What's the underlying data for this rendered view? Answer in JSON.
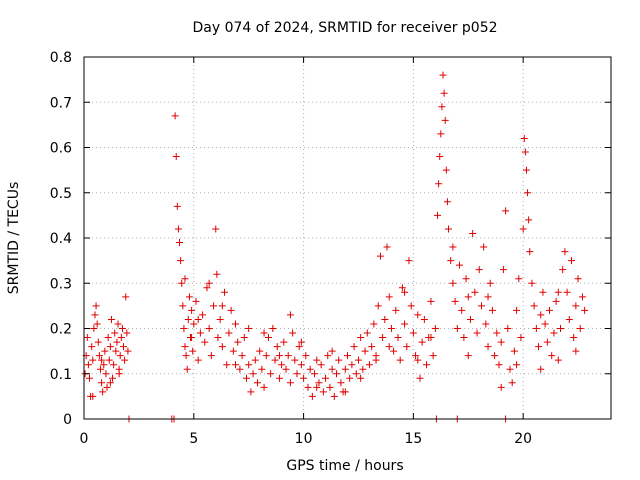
{
  "chart_data": {
    "type": "scatter",
    "title": "Day 074 of 2024, SRMTID for receiver p052",
    "xlabel": "GPS time / hours",
    "ylabel": "SRMTID / TECUs",
    "xlim": [
      0,
      24
    ],
    "ylim": [
      0,
      0.8
    ],
    "xticks": [
      0,
      5,
      10,
      15,
      20
    ],
    "xtick_labels": [
      "0",
      "5",
      "10",
      "15",
      "20"
    ],
    "yticks": [
      0,
      0.1,
      0.2,
      0.3,
      0.4,
      0.5,
      0.6,
      0.7,
      0.8
    ],
    "ytick_labels": [
      "0",
      "0.1",
      "0.2",
      "0.3",
      "0.4",
      "0.5",
      "0.6",
      "0.7",
      "0.8"
    ],
    "grid": true,
    "marker": "+",
    "color": "#e00000",
    "series": [
      {
        "name": "p052",
        "points": [
          [
            0.05,
            0.1
          ],
          [
            0.1,
            0.14
          ],
          [
            0.15,
            0.18
          ],
          [
            0.2,
            0.12
          ],
          [
            0.25,
            0.09
          ],
          [
            0.3,
            0.05
          ],
          [
            0.35,
            0.16
          ],
          [
            0.4,
            0.13
          ],
          [
            0.45,
            0.2
          ],
          [
            0.5,
            0.23
          ],
          [
            0.55,
            0.25
          ],
          [
            0.6,
            0.21
          ],
          [
            0.65,
            0.17
          ],
          [
            0.7,
            0.14
          ],
          [
            0.75,
            0.11
          ],
          [
            0.8,
            0.08
          ],
          [
            0.85,
            0.06
          ],
          [
            0.9,
            0.12
          ],
          [
            0.95,
            0.15
          ],
          [
            1.0,
            0.1
          ],
          [
            1.05,
            0.07
          ],
          [
            1.1,
            0.18
          ],
          [
            1.15,
            0.13
          ],
          [
            1.2,
            0.16
          ],
          [
            1.25,
            0.22
          ],
          [
            1.3,
            0.09
          ],
          [
            1.35,
            0.12
          ],
          [
            1.4,
            0.19
          ],
          [
            1.45,
            0.15
          ],
          [
            1.5,
            0.17
          ],
          [
            1.55,
            0.21
          ],
          [
            1.6,
            0.11
          ],
          [
            1.65,
            0.14
          ],
          [
            1.7,
            0.18
          ],
          [
            1.75,
            0.2
          ],
          [
            1.8,
            0.16
          ],
          [
            1.85,
            0.13
          ],
          [
            1.9,
            0.27
          ],
          [
            1.95,
            0.19
          ],
          [
            2.0,
            0.15
          ],
          [
            2.05,
            0.0
          ],
          [
            0.4,
            0.05
          ],
          [
            0.8,
            0.13
          ],
          [
            1.2,
            0.08
          ],
          [
            1.6,
            0.1
          ],
          [
            4.0,
            0.0
          ],
          [
            4.1,
            0.0
          ],
          [
            4.15,
            0.67
          ],
          [
            4.2,
            0.58
          ],
          [
            4.25,
            0.47
          ],
          [
            4.3,
            0.42
          ],
          [
            4.35,
            0.39
          ],
          [
            4.4,
            0.35
          ],
          [
            4.45,
            0.3
          ],
          [
            4.5,
            0.25
          ],
          [
            4.55,
            0.2
          ],
          [
            4.6,
            0.16
          ],
          [
            4.65,
            0.14
          ],
          [
            4.7,
            0.11
          ],
          [
            4.75,
            0.22
          ],
          [
            4.8,
            0.27
          ],
          [
            4.85,
            0.18
          ],
          [
            4.9,
            0.24
          ],
          [
            4.95,
            0.15
          ],
          [
            5.0,
            0.21
          ],
          [
            5.1,
            0.26
          ],
          [
            5.2,
            0.13
          ],
          [
            5.3,
            0.19
          ],
          [
            5.4,
            0.23
          ],
          [
            5.5,
            0.17
          ],
          [
            5.6,
            0.29
          ],
          [
            5.7,
            0.2
          ],
          [
            5.8,
            0.14
          ],
          [
            5.9,
            0.25
          ],
          [
            6.0,
            0.42
          ],
          [
            6.05,
            0.32
          ],
          [
            6.1,
            0.18
          ],
          [
            6.2,
            0.22
          ],
          [
            6.3,
            0.16
          ],
          [
            6.4,
            0.28
          ],
          [
            6.5,
            0.12
          ],
          [
            6.6,
            0.19
          ],
          [
            6.7,
            0.24
          ],
          [
            6.8,
            0.15
          ],
          [
            6.9,
            0.21
          ],
          [
            7.0,
            0.17
          ],
          [
            7.1,
            0.11
          ],
          [
            7.2,
            0.14
          ],
          [
            7.3,
            0.18
          ],
          [
            7.4,
            0.09
          ],
          [
            7.5,
            0.12
          ],
          [
            7.6,
            0.06
          ],
          [
            7.7,
            0.1
          ],
          [
            7.8,
            0.13
          ],
          [
            7.9,
            0.08
          ],
          [
            8.0,
            0.15
          ],
          [
            8.1,
            0.11
          ],
          [
            8.2,
            0.07
          ],
          [
            8.3,
            0.14
          ],
          [
            8.4,
            0.18
          ],
          [
            8.5,
            0.1
          ],
          [
            8.6,
            0.2
          ],
          [
            8.7,
            0.13
          ],
          [
            8.8,
            0.16
          ],
          [
            8.9,
            0.09
          ],
          [
            9.0,
            0.12
          ],
          [
            9.1,
            0.17
          ],
          [
            9.2,
            0.11
          ],
          [
            9.3,
            0.14
          ],
          [
            9.4,
            0.08
          ],
          [
            9.5,
            0.19
          ],
          [
            9.6,
            0.13
          ],
          [
            9.7,
            0.1
          ],
          [
            9.8,
            0.16
          ],
          [
            9.9,
            0.12
          ],
          [
            10.0,
            0.09
          ],
          [
            10.1,
            0.14
          ],
          [
            10.2,
            0.07
          ],
          [
            10.3,
            0.11
          ],
          [
            10.4,
            0.05
          ],
          [
            10.5,
            0.1
          ],
          [
            10.6,
            0.13
          ],
          [
            10.7,
            0.08
          ],
          [
            10.8,
            0.12
          ],
          [
            10.9,
            0.06
          ],
          [
            11.0,
            0.09
          ],
          [
            11.1,
            0.14
          ],
          [
            11.2,
            0.07
          ],
          [
            11.3,
            0.11
          ],
          [
            11.4,
            0.05
          ],
          [
            11.5,
            0.1
          ],
          [
            11.6,
            0.13
          ],
          [
            11.7,
            0.08
          ],
          [
            11.8,
            0.06
          ],
          [
            11.9,
            0.11
          ],
          [
            12.0,
            0.14
          ],
          [
            12.1,
            0.09
          ],
          [
            12.2,
            0.12
          ],
          [
            12.3,
            0.16
          ],
          [
            12.4,
            0.1
          ],
          [
            12.5,
            0.13
          ],
          [
            12.6,
            0.18
          ],
          [
            12.7,
            0.11
          ],
          [
            12.8,
            0.15
          ],
          [
            12.9,
            0.19
          ],
          [
            13.0,
            0.12
          ],
          [
            13.1,
            0.16
          ],
          [
            13.2,
            0.21
          ],
          [
            13.3,
            0.14
          ],
          [
            13.4,
            0.25
          ],
          [
            13.5,
            0.36
          ],
          [
            13.6,
            0.18
          ],
          [
            13.7,
            0.22
          ],
          [
            13.8,
            0.38
          ],
          [
            13.9,
            0.27
          ],
          [
            14.0,
            0.2
          ],
          [
            14.1,
            0.15
          ],
          [
            14.2,
            0.24
          ],
          [
            14.3,
            0.18
          ],
          [
            14.4,
            0.13
          ],
          [
            14.5,
            0.29
          ],
          [
            14.6,
            0.21
          ],
          [
            14.7,
            0.16
          ],
          [
            14.8,
            0.35
          ],
          [
            14.9,
            0.25
          ],
          [
            15.0,
            0.19
          ],
          [
            15.1,
            0.14
          ],
          [
            15.2,
            0.23
          ],
          [
            15.3,
            0.09
          ],
          [
            15.4,
            0.17
          ],
          [
            15.5,
            0.22
          ],
          [
            15.6,
            0.12
          ],
          [
            15.7,
            0.18
          ],
          [
            15.8,
            0.26
          ],
          [
            15.9,
            0.14
          ],
          [
            16.0,
            0.2
          ],
          [
            16.05,
            0.0
          ],
          [
            16.1,
            0.45
          ],
          [
            16.15,
            0.52
          ],
          [
            16.2,
            0.58
          ],
          [
            16.25,
            0.63
          ],
          [
            16.3,
            0.69
          ],
          [
            16.35,
            0.76
          ],
          [
            16.4,
            0.72
          ],
          [
            16.45,
            0.66
          ],
          [
            16.5,
            0.55
          ],
          [
            16.55,
            0.48
          ],
          [
            16.6,
            0.42
          ],
          [
            16.7,
            0.35
          ],
          [
            16.8,
            0.3
          ],
          [
            16.9,
            0.26
          ],
          [
            17.0,
            0.2
          ],
          [
            17.1,
            0.34
          ],
          [
            17.2,
            0.24
          ],
          [
            17.3,
            0.18
          ],
          [
            17.4,
            0.31
          ],
          [
            17.5,
            0.27
          ],
          [
            17.6,
            0.22
          ],
          [
            17.7,
            0.41
          ],
          [
            17.8,
            0.28
          ],
          [
            17.9,
            0.19
          ],
          [
            18.0,
            0.33
          ],
          [
            18.1,
            0.25
          ],
          [
            18.2,
            0.38
          ],
          [
            18.3,
            0.21
          ],
          [
            18.4,
            0.16
          ],
          [
            18.5,
            0.3
          ],
          [
            18.6,
            0.24
          ],
          [
            18.7,
            0.14
          ],
          [
            18.8,
            0.19
          ],
          [
            18.9,
            0.12
          ],
          [
            19.0,
            0.17
          ],
          [
            19.1,
            0.33
          ],
          [
            19.2,
            0.46
          ],
          [
            19.3,
            0.2
          ],
          [
            19.4,
            0.11
          ],
          [
            19.5,
            0.08
          ],
          [
            19.6,
            0.15
          ],
          [
            19.7,
            0.24
          ],
          [
            19.8,
            0.31
          ],
          [
            19.9,
            0.18
          ],
          [
            20.0,
            0.42
          ],
          [
            20.05,
            0.62
          ],
          [
            20.1,
            0.59
          ],
          [
            20.15,
            0.55
          ],
          [
            20.2,
            0.5
          ],
          [
            20.25,
            0.44
          ],
          [
            20.3,
            0.37
          ],
          [
            20.4,
            0.3
          ],
          [
            20.5,
            0.25
          ],
          [
            20.6,
            0.2
          ],
          [
            20.7,
            0.16
          ],
          [
            20.8,
            0.23
          ],
          [
            20.9,
            0.28
          ],
          [
            21.0,
            0.21
          ],
          [
            21.1,
            0.17
          ],
          [
            21.2,
            0.24
          ],
          [
            21.3,
            0.14
          ],
          [
            21.4,
            0.19
          ],
          [
            21.5,
            0.26
          ],
          [
            21.6,
            0.13
          ],
          [
            21.7,
            0.2
          ],
          [
            21.8,
            0.33
          ],
          [
            21.9,
            0.37
          ],
          [
            22.0,
            0.28
          ],
          [
            22.1,
            0.22
          ],
          [
            22.2,
            0.35
          ],
          [
            22.3,
            0.18
          ],
          [
            22.4,
            0.25
          ],
          [
            22.5,
            0.31
          ],
          [
            22.6,
            0.2
          ],
          [
            22.7,
            0.27
          ],
          [
            22.8,
            0.24
          ],
          [
            17.0,
            0.0
          ],
          [
            19.2,
            0.0
          ],
          [
            4.6,
            0.31
          ],
          [
            4.9,
            0.18
          ],
          [
            5.2,
            0.22
          ],
          [
            5.7,
            0.3
          ],
          [
            6.3,
            0.25
          ],
          [
            6.9,
            0.12
          ],
          [
            7.5,
            0.2
          ],
          [
            8.2,
            0.19
          ],
          [
            8.9,
            0.14
          ],
          [
            9.4,
            0.23
          ],
          [
            9.9,
            0.17
          ],
          [
            10.6,
            0.07
          ],
          [
            11.3,
            0.15
          ],
          [
            11.9,
            0.06
          ],
          [
            12.6,
            0.09
          ],
          [
            13.3,
            0.13
          ],
          [
            13.9,
            0.16
          ],
          [
            14.6,
            0.28
          ],
          [
            15.2,
            0.13
          ],
          [
            15.8,
            0.18
          ],
          [
            16.8,
            0.38
          ],
          [
            17.5,
            0.14
          ],
          [
            18.4,
            0.27
          ],
          [
            19.0,
            0.07
          ],
          [
            19.7,
            0.12
          ],
          [
            20.8,
            0.11
          ],
          [
            21.6,
            0.28
          ],
          [
            22.4,
            0.15
          ]
        ]
      }
    ]
  }
}
